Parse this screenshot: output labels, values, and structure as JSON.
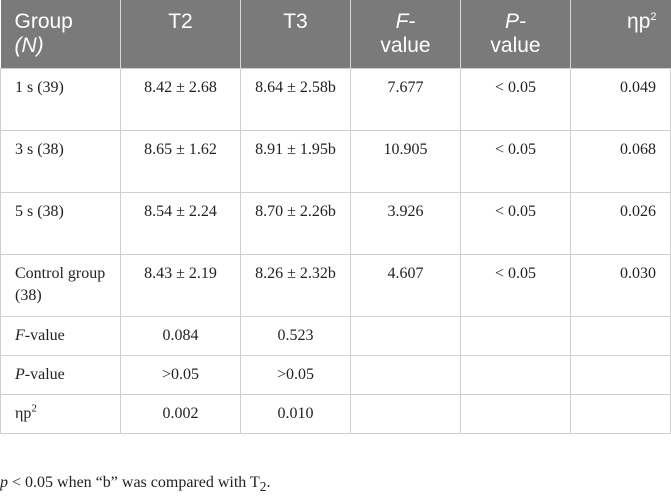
{
  "table": {
    "headers": {
      "group_line1": "Group",
      "group_line2": "(N)",
      "t2": "T2",
      "t3": "T3",
      "f_line1": "F-",
      "f_line2": "value",
      "p_line1": "P-",
      "p_line2": "value",
      "eta": "ηp",
      "eta_sup": "2"
    },
    "rows": [
      {
        "group": "1 s (39)",
        "t2": "8.42 ± 2.68",
        "t3": "8.64 ± 2.58b",
        "f": "7.677",
        "p": "< 0.05",
        "eta": "0.049"
      },
      {
        "group": "3 s (38)",
        "t2": "8.65 ± 1.62",
        "t3": "8.91 ± 1.95b",
        "f": "10.905",
        "p": "< 0.05",
        "eta": "0.068"
      },
      {
        "group": "5 s (38)",
        "t2": "8.54 ± 2.24",
        "t3": "8.70 ± 2.26b",
        "f": "3.926",
        "p": "< 0.05",
        "eta": "0.026"
      },
      {
        "group": "Control group (38)",
        "t2": "8.43 ± 2.19",
        "t3": "8.26 ± 2.32b",
        "f": "4.607",
        "p": "< 0.05",
        "eta": "0.030"
      }
    ],
    "f_row": {
      "label_italic": "F",
      "label_rest": "-value",
      "t2": "0.084",
      "t3": "0.523"
    },
    "p_row": {
      "label_italic": "P",
      "label_rest": "-value",
      "t2": ">0.05",
      "t3": ">0.05"
    },
    "eta_row": {
      "label": "ηp",
      "label_sup": "2",
      "t2": "0.002",
      "t3": "0.010"
    }
  },
  "footnote": {
    "p_italic": "p",
    "text_mid": " < 0.05 when “b” was compared with T",
    "sub": "2",
    "end": "."
  }
}
